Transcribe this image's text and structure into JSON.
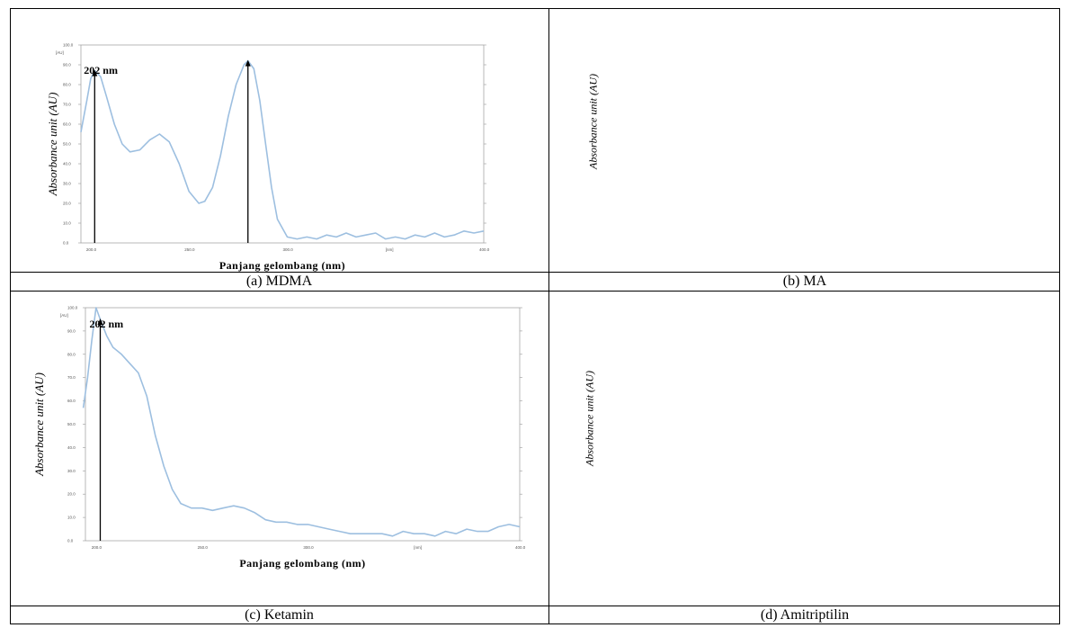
{
  "captions": {
    "a": "(a) MDMA",
    "b": "(b) MA",
    "c": "(c) Ketamin",
    "d": "(d) Amitriptilin"
  },
  "empty_panel_ylabels": {
    "b": "Absorbance unit (AU)",
    "d": "Absorbance unit (AU)"
  },
  "colors": {
    "curve": "#9dbfe0",
    "arrow": "#000000",
    "frame": "#9a9a9a"
  },
  "chart_data": [
    {
      "type": "line",
      "panel": "a",
      "ylabel": "Absorbance unit (AU)",
      "xlabel": "Panjang gelombang (nm)",
      "y_unit_label": "[AU]",
      "x_unit_label": "[nm]",
      "xlim": [
        195,
        400
      ],
      "ylim": [
        0,
        100
      ],
      "yticks": [
        "0.0",
        "10.0",
        "20.0",
        "30.0",
        "40.0",
        "50.0",
        "60.0",
        "70.0",
        "80.0",
        "90.0",
        "100.0"
      ],
      "xticks": [
        "200.0",
        "250.0",
        "300.0",
        "400.0"
      ],
      "annotation": "202 nm",
      "peaks_marked_x": [
        202,
        280
      ],
      "series": [
        {
          "x": [
            195,
            198,
            200,
            202,
            205,
            208,
            212,
            216,
            220,
            225,
            230,
            235,
            240,
            245,
            250,
            255,
            258,
            262,
            266,
            270,
            274,
            278,
            280,
            283,
            286,
            289,
            292,
            295,
            300,
            305,
            310,
            315,
            320,
            325,
            330,
            335,
            340,
            345,
            350,
            355,
            360,
            365,
            370,
            375,
            380,
            385,
            390,
            395,
            400
          ],
          "y": [
            56,
            72,
            83,
            87,
            84,
            74,
            60,
            50,
            46,
            47,
            52,
            55,
            51,
            40,
            26,
            20,
            21,
            28,
            44,
            64,
            80,
            90,
            92,
            88,
            72,
            50,
            28,
            12,
            3,
            2,
            3,
            2,
            4,
            3,
            5,
            3,
            4,
            5,
            2,
            3,
            2,
            4,
            3,
            5,
            3,
            4,
            6,
            5,
            6
          ]
        }
      ]
    },
    {
      "type": "line",
      "panel": "c",
      "ylabel": "Absorbance unit (AU)",
      "xlabel": "Panjang gelombang (nm)",
      "y_unit_label": "[AU]",
      "x_unit_label": "[nm]",
      "xlim": [
        195,
        400
      ],
      "ylim": [
        0,
        100
      ],
      "yticks": [
        "0.0",
        "10.0",
        "20.0",
        "30.0",
        "40.0",
        "50.0",
        "60.0",
        "70.0",
        "80.0",
        "90.0",
        "100.0"
      ],
      "xticks": [
        "200.0",
        "250.0",
        "300.0",
        "400.0"
      ],
      "annotation": "202 nm",
      "peaks_marked_x": [
        202
      ],
      "series": [
        {
          "x": [
            194,
            196,
            198,
            200,
            202,
            205,
            208,
            212,
            216,
            220,
            224,
            228,
            232,
            236,
            240,
            245,
            250,
            255,
            260,
            265,
            270,
            275,
            280,
            285,
            290,
            295,
            300,
            305,
            310,
            315,
            320,
            325,
            330,
            335,
            340,
            345,
            350,
            355,
            360,
            365,
            370,
            375,
            380,
            385,
            390,
            395,
            400
          ],
          "y": [
            57,
            70,
            86,
            100,
            95,
            88,
            83,
            80,
            76,
            72,
            62,
            45,
            32,
            22,
            16,
            14,
            14,
            13,
            14,
            15,
            14,
            12,
            9,
            8,
            8,
            7,
            7,
            6,
            5,
            4,
            3,
            3,
            3,
            3,
            2,
            4,
            3,
            3,
            2,
            4,
            3,
            5,
            4,
            4,
            6,
            7,
            6
          ]
        }
      ]
    }
  ]
}
